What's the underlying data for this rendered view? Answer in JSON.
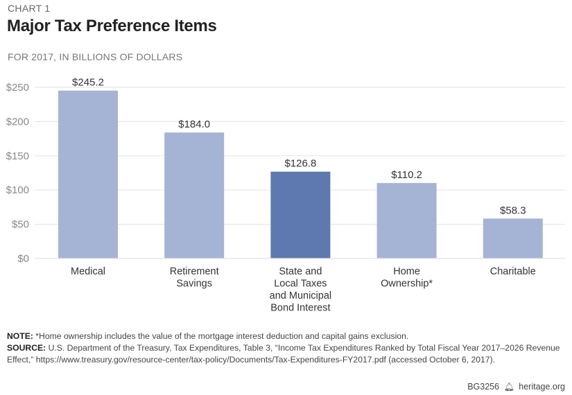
{
  "header": {
    "kicker": "CHART 1",
    "title": "Major Tax Preference Items",
    "subtitle": "FOR 2017, IN BILLIONS OF DOLLARS"
  },
  "chart_data": {
    "type": "bar",
    "title": "Major Tax Preference Items",
    "subtitle": "FOR 2017, IN BILLIONS OF DOLLARS",
    "xlabel": "",
    "ylabel": "",
    "ylim": [
      0,
      250
    ],
    "yticks": [
      0,
      50,
      100,
      150,
      200,
      250
    ],
    "ytick_labels": [
      "$0",
      "$50",
      "$100",
      "$150",
      "$200",
      "$250"
    ],
    "grid": true,
    "legend": "none",
    "categories": [
      [
        "Medical"
      ],
      [
        "Retirement",
        "Savings"
      ],
      [
        "State and",
        "Local Taxes",
        "and Municipal",
        "Bond Interest"
      ],
      [
        "Home",
        "Ownership*"
      ],
      [
        "Charitable"
      ]
    ],
    "category_names": [
      "Medical",
      "Retirement Savings",
      "State and Local Taxes and Municipal Bond Interest",
      "Home Ownership*",
      "Charitable"
    ],
    "values": [
      245.2,
      184.0,
      126.8,
      110.2,
      58.3
    ],
    "data_labels": [
      "$245.2",
      "$184.0",
      "$126.8",
      "$110.2",
      "$58.3"
    ],
    "highlight_index": 2,
    "colors": {
      "bar": "#a3b2d4",
      "highlight": "#5e79b0",
      "grid": "#e6e6e6",
      "axis_text": "#888888"
    }
  },
  "notes": {
    "note_label": "NOTE:",
    "note_text": " *Home ownership includes the value of the mortgage interest deduction and capital gains exclusion.",
    "source_label": "SOURCE:",
    "source_text": " U.S. Department of the Treasury, Tax Expenditures, Table 3, “Income Tax Expenditures Ranked by Total Fiscal Year 2017–2026 Revenue Effect,” https://www.treasury.gov/resource-center/tax-policy/Documents/Tax-Expenditures-FY2017.pdf (accessed October 6, 2017)."
  },
  "footer": {
    "code": "BG3256",
    "icon": "liberty-bell-icon",
    "site": "heritage.org"
  }
}
